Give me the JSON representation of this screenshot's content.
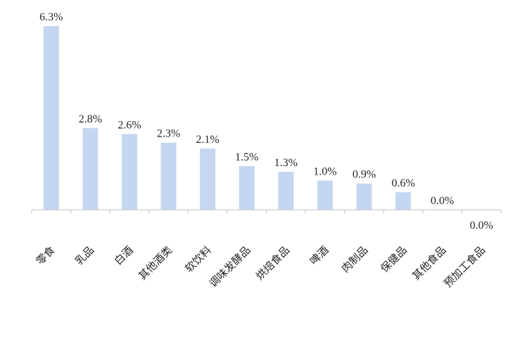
{
  "chart_data": {
    "type": "bar",
    "title": "",
    "xlabel": "",
    "ylabel": "",
    "categories": [
      "零食",
      "乳品",
      "白酒",
      "其他酒类",
      "软饮料",
      "调味发酵品",
      "烘焙食品",
      "啤酒",
      "肉制品",
      "保健品",
      "其他食品",
      "预加工食品"
    ],
    "values": [
      6.3,
      2.8,
      2.6,
      2.3,
      2.1,
      1.5,
      1.3,
      1.0,
      0.9,
      0.6,
      0.0,
      0.0
    ],
    "data_labels": [
      "6.3%",
      "2.8%",
      "2.6%",
      "2.3%",
      "2.1%",
      "1.5%",
      "1.3%",
      "1.0%",
      "0.9%",
      "0.6%",
      "0.0%",
      "0.0%"
    ],
    "ylim": [
      0,
      6.3
    ],
    "grid": false,
    "legend": "none",
    "colors": {
      "bar": "#C5D7F0",
      "axis": "#BFBFBF",
      "text": "#262626"
    }
  }
}
